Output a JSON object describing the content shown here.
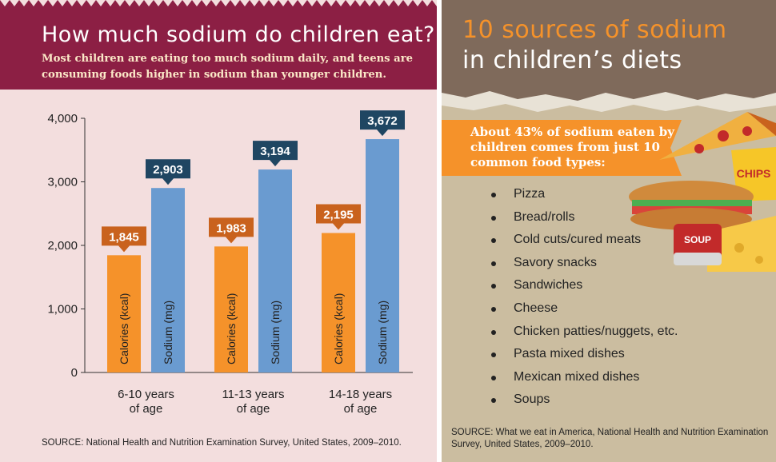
{
  "left": {
    "title": "How much sodium do children eat?",
    "subtitle": "Most children are eating too much sodium daily, and teens are consuming foods higher in sodium than younger children.",
    "source": "SOURCE: National Health and Nutrition Examination Survey, United States, 2009–2010."
  },
  "chart_data": {
    "type": "bar",
    "categories": [
      "6-10 years of age",
      "11-13 years of age",
      "14-18 years of age"
    ],
    "category_lines": [
      [
        "6-10 years",
        "of age"
      ],
      [
        "11-13 years",
        "of age"
      ],
      [
        "14-18 years",
        "of age"
      ]
    ],
    "series": [
      {
        "name": "Calories (kcal)",
        "color": "#f5922a",
        "values": [
          1845,
          1983,
          2195
        ],
        "labels": [
          "1,845",
          "1,983",
          "2,195"
        ]
      },
      {
        "name": "Sodium (mg)",
        "color": "#6a9bd0",
        "values": [
          2903,
          3194,
          3672
        ],
        "labels": [
          "2,903",
          "3,194",
          "3,672"
        ]
      }
    ],
    "label_colors": {
      "Calories (kcal)": "#c9621d",
      "Sodium (mg)": "#1f4662"
    },
    "ylim": [
      0,
      4000
    ],
    "yticks": [
      0,
      1000,
      2000,
      3000,
      4000
    ],
    "ytick_labels": [
      "0",
      "1,000",
      "2,000",
      "3,000",
      "4,000"
    ],
    "grid": false
  },
  "right": {
    "title_line1": "10 sources of sodium",
    "title_line2": "in children’s diets",
    "banner": "About 43% of sodium eaten by children comes from just 10 common food types:",
    "foods": [
      "Pizza",
      "Bread/rolls",
      "Cold cuts/cured meats",
      "Savory snacks",
      "Sandwiches",
      "Cheese",
      "Chicken patties/nuggets, etc.",
      "Pasta mixed dishes",
      "Mexican mixed dishes",
      "Soups"
    ],
    "art_labels": {
      "chips": "CHIPS",
      "soup": "SOUP"
    },
    "source": "SOURCE: What we eat in America, National Health and Nutrition Examination Survey, United States, 2009–2010."
  },
  "colors": {
    "left_header": "#8c1f44",
    "left_bg": "#f3dede",
    "right_top": "#7f6a5b",
    "right_bg": "#cbbda0",
    "accent_orange": "#f5922a"
  }
}
